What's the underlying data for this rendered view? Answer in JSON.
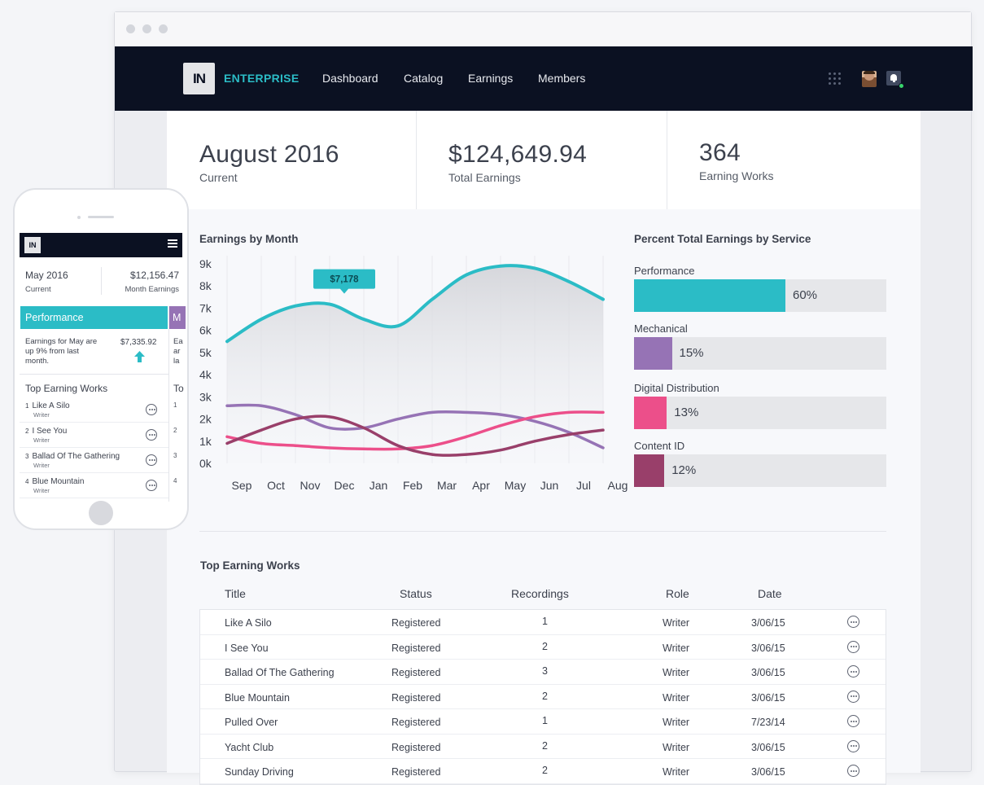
{
  "nav": {
    "logo": "IN",
    "brand": "ENTERPRISE",
    "links": [
      "Dashboard",
      "Catalog",
      "Earnings",
      "Members"
    ]
  },
  "stats": [
    {
      "value": "August 2016",
      "label": "Current"
    },
    {
      "value": "$124,649.94",
      "label": "Total Earnings"
    },
    {
      "value": "364",
      "label": "Earning Works"
    }
  ],
  "earnings_title": "Earnings by Month",
  "service_title": "Percent Total Earnings by Service",
  "chart_data": [
    {
      "type": "line",
      "title": "Earnings by Month",
      "x": [
        "Sep",
        "Oct",
        "Nov",
        "Dec",
        "Jan",
        "Feb",
        "Mar",
        "Apr",
        "May",
        "Jun",
        "Jul",
        "Aug"
      ],
      "y_ticks": [
        "0k",
        "1k",
        "2k",
        "3k",
        "4k",
        "5k",
        "6k",
        "7k",
        "8k",
        "9k"
      ],
      "ylim": [
        0,
        9000
      ],
      "tooltip": {
        "label": "$7,178",
        "x": "Dec",
        "value": 7178
      },
      "series": [
        {
          "color": "#2bbcc6",
          "area": true,
          "values": [
            5500,
            6500,
            7100,
            7180,
            6500,
            6200,
            7400,
            8500,
            8900,
            8800,
            8200,
            7400
          ]
        },
        {
          "color": "#9673b5",
          "values": [
            2600,
            2600,
            2200,
            1600,
            1600,
            2000,
            2300,
            2300,
            2200,
            1900,
            1400,
            700
          ]
        },
        {
          "color": "#ec4f8a",
          "values": [
            1200,
            900,
            800,
            700,
            650,
            650,
            800,
            1200,
            1700,
            2100,
            2300,
            2300
          ]
        },
        {
          "color": "#993f6a",
          "values": [
            900,
            1500,
            2000,
            2100,
            1600,
            800,
            400,
            400,
            600,
            1000,
            1300,
            1500
          ]
        }
      ]
    },
    {
      "type": "bar",
      "title": "Percent Total Earnings by Service",
      "categories": [
        "Performance",
        "Mechanical",
        "Digital Distribution",
        "Content ID"
      ],
      "values": [
        60,
        15,
        13,
        12
      ],
      "labels": [
        "60%",
        "15%",
        "13%",
        "12%"
      ],
      "colors": [
        "#2bbcc6",
        "#9673b5",
        "#ec4f8a",
        "#993f6a"
      ],
      "xlim": [
        0,
        100
      ]
    }
  ],
  "works": {
    "title": "Top Earning Works",
    "columns": [
      "Title",
      "Status",
      "Recordings",
      "Role",
      "Date"
    ],
    "rows": [
      [
        "Like A Silo",
        "Registered",
        "1",
        "Writer",
        "3/06/15"
      ],
      [
        "I See You",
        "Registered",
        "2",
        "Writer",
        "3/06/15"
      ],
      [
        "Ballad Of The Gathering",
        "Registered",
        "3",
        "Writer",
        "3/06/15"
      ],
      [
        "Blue Mountain",
        "Registered",
        "2",
        "Writer",
        "3/06/15"
      ],
      [
        "Pulled Over",
        "Registered",
        "1",
        "Writer",
        "7/23/14"
      ],
      [
        "Yacht Club",
        "Registered",
        "2",
        "Writer",
        "3/06/15"
      ],
      [
        "Sunday Driving",
        "Registered",
        "2",
        "Writer",
        "3/06/15"
      ]
    ]
  },
  "mobile": {
    "logo": "IN",
    "period": "May 2016",
    "period_label": "Current",
    "earnings": "$12,156.47",
    "earnings_label": "Month Earnings",
    "tab_active": "Performance",
    "tab_next": "M",
    "note": "Earnings for May are up 9% from last month.",
    "note_amount": "$7,335.92",
    "note_peek": [
      "Ea",
      "ar",
      "la"
    ],
    "works_title": "Top Earning Works",
    "works_peek": "To",
    "works": [
      {
        "n": "1",
        "title": "Like A Silo",
        "role": "Writer"
      },
      {
        "n": "2",
        "title": "I See You",
        "role": "Writer"
      },
      {
        "n": "3",
        "title": "Ballad Of The Gathering",
        "role": "Writer"
      },
      {
        "n": "4",
        "title": "Blue Mountain",
        "role": "Writer"
      }
    ],
    "works_peek_numbers": [
      "1",
      "2",
      "3",
      "4"
    ]
  }
}
